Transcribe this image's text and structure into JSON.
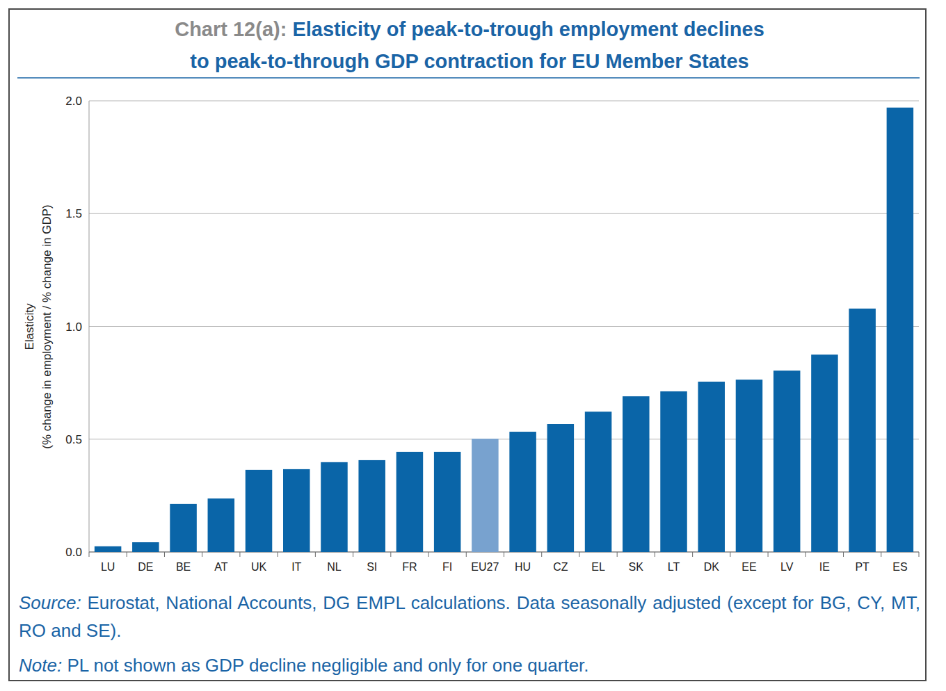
{
  "chart_data": {
    "type": "bar",
    "title": [
      "Chart 12(a): Elasticity of peak-to-trough employment declines",
      "to peak-to-through GDP contraction for EU Member States"
    ],
    "y_label": [
      "Elasticity",
      "(% change in employment / % change in GDP)"
    ],
    "categories": [
      "LU",
      "DE",
      "BE",
      "AT",
      "UK",
      "IT",
      "NL",
      "SI",
      "FR",
      "FI",
      "EU27",
      "HU",
      "CZ",
      "EL",
      "SK",
      "LT",
      "DK",
      "EE",
      "LV",
      "IE",
      "PT",
      "ES"
    ],
    "values": [
      0.025,
      0.043,
      0.213,
      0.237,
      0.364,
      0.367,
      0.398,
      0.407,
      0.444,
      0.444,
      0.502,
      0.533,
      0.567,
      0.622,
      0.69,
      0.712,
      0.755,
      0.764,
      0.804,
      0.875,
      1.079,
      1.97
    ],
    "colors": [
      "#0a65a8",
      "#0a65a8",
      "#0a65a8",
      "#0a65a8",
      "#0a65a8",
      "#0a65a8",
      "#0a65a8",
      "#0a65a8",
      "#0a65a8",
      "#0a65a8",
      "#78a2cf",
      "#0a65a8",
      "#0a65a8",
      "#0a65a8",
      "#0a65a8",
      "#0a65a8",
      "#0a65a8",
      "#0a65a8",
      "#0a65a8",
      "#0a65a8",
      "#0a65a8",
      "#0a65a8"
    ],
    "ylim": [
      0,
      2
    ],
    "yticks": [
      {
        "value": 0,
        "label": "0.0"
      },
      0.5,
      {
        "value": 1,
        "label": "1.0"
      },
      1.5,
      {
        "value": 2,
        "label": "2.0"
      }
    ],
    "grid": true,
    "source": "Source: Eurostat, National Accounts, DG EMPL calculations. Data seasonally adjusted (except for BG, CY, MT, RO and SE).",
    "note": "Note: PL not shown as GDP decline negligible and only for one quarter."
  }
}
